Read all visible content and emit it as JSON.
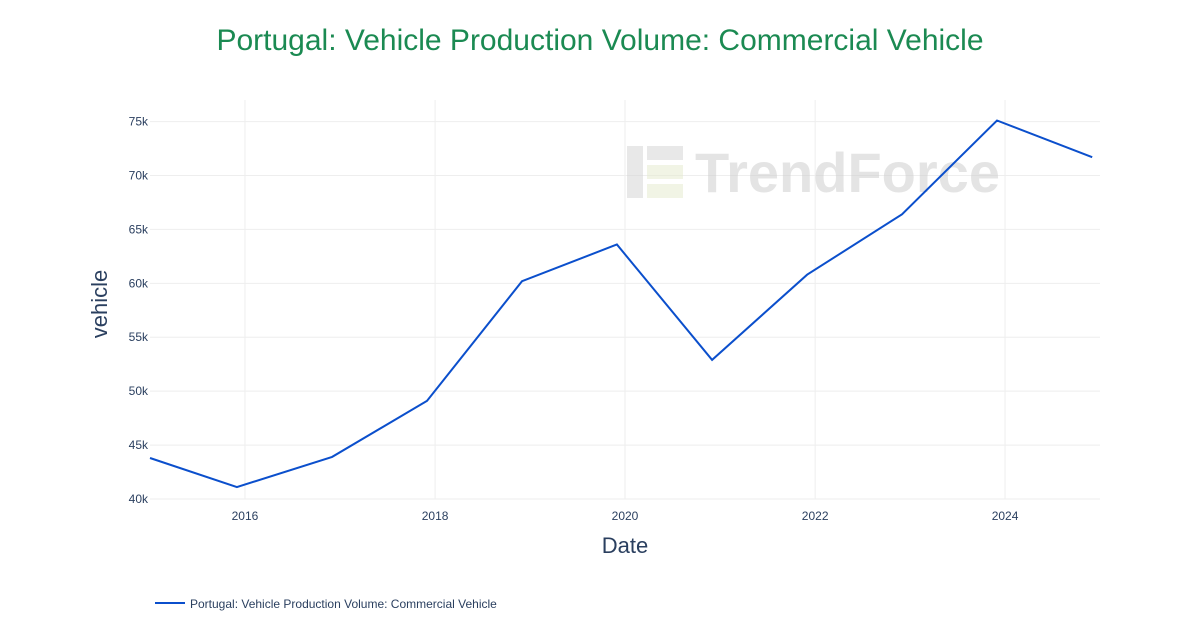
{
  "chart_data": {
    "type": "line",
    "title": "Portugal: Vehicle Production Volume: Commercial Vehicle",
    "xlabel": "Date",
    "ylabel": "vehicle",
    "x": [
      "2015-01-01",
      "2015-12-01",
      "2016-12-01",
      "2017-12-01",
      "2018-12-01",
      "2019-12-01",
      "2020-12-01",
      "2021-12-01",
      "2022-12-01",
      "2023-12-01",
      "2024-12-01"
    ],
    "series": [
      {
        "name": "Portugal: Vehicle Production Volume: Commercial Vehicle",
        "values": [
          43800,
          41100,
          43900,
          49100,
          60200,
          63600,
          52900,
          60800,
          66400,
          75100,
          71700
        ]
      }
    ],
    "x_ticks": [
      "2016",
      "2018",
      "2020",
      "2022",
      "2024"
    ],
    "y_ticks": [
      "40k",
      "45k",
      "50k",
      "55k",
      "60k",
      "65k",
      "70k",
      "75k"
    ],
    "ylim": [
      40000,
      77000
    ],
    "xlim": [
      "2015-01-01",
      "2024-12-31"
    ],
    "grid": true,
    "legend_position": "bottom-left"
  },
  "colors": {
    "title": "#1b8a52",
    "line": "#0b4fcc",
    "watermark": "#d9d9d9"
  },
  "watermark": {
    "text": "TrendForce"
  }
}
